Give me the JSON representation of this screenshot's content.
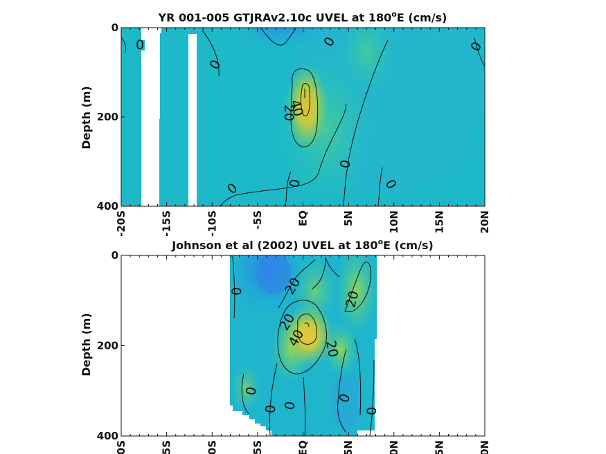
{
  "chart_data": [
    {
      "type": "heatmap",
      "title": "YR 001-005 GTJRAv2.10c UVEL at 180",
      "title_sup": "o",
      "title_suffix": "E (cm/s)",
      "ylabel": "Depth (m)",
      "xlabel": "",
      "x_ticks": [
        "-20S",
        "-15S",
        "-10S",
        "-5S",
        "EQ",
        "5N",
        "10N",
        "15N",
        "20N"
      ],
      "x_tick_values": [
        -20,
        -15,
        -10,
        -5,
        0,
        5,
        10,
        15,
        20
      ],
      "y_ticks": [
        "0",
        "200",
        "400"
      ],
      "y_tick_values": [
        0,
        200,
        400
      ],
      "xlim": [
        -20,
        20
      ],
      "ylim": [
        400,
        0
      ],
      "contour_levels": [
        0,
        20,
        40
      ],
      "contour_labels": [
        "0",
        "0",
        "0",
        "0",
        "20",
        "40",
        "0",
        "0",
        "0",
        "0"
      ],
      "core": {
        "lat": 0.5,
        "depth": 150,
        "max_cm_s": 45
      },
      "colormap": [
        "#2b83e8",
        "#1eb0d6",
        "#25c5a3",
        "#8bd155",
        "#e8c43a"
      ]
    },
    {
      "type": "heatmap",
      "title": "Johnson et al (2002) UVEL at 180",
      "title_sup": "o",
      "title_suffix": "E (cm/s)",
      "ylabel": "Depth (m)",
      "xlabel": "",
      "x_ticks": [
        "-20S",
        "-15S",
        "-10S",
        "-5S",
        "EQ",
        "5N",
        "10N",
        "15N",
        "20N"
      ],
      "x_tick_values": [
        -20,
        -15,
        -10,
        -5,
        0,
        5,
        10,
        15,
        20
      ],
      "y_ticks": [
        "0",
        "200",
        "400"
      ],
      "y_tick_values": [
        0,
        200,
        400
      ],
      "xlim": [
        -20,
        20
      ],
      "ylim": [
        400,
        0
      ],
      "data_lat_range": [
        -8,
        8
      ],
      "contour_levels": [
        0,
        20,
        40
      ],
      "contour_labels": [
        "0",
        "20",
        "20",
        "20",
        "40",
        "20",
        "0",
        "0",
        "0",
        "0",
        "0"
      ],
      "core": {
        "lat": 0.5,
        "depth": 175,
        "max_cm_s": 45
      },
      "colormap": [
        "#2b83e8",
        "#1eb0d6",
        "#25c5a3",
        "#8bd155",
        "#e8c43a"
      ]
    }
  ]
}
